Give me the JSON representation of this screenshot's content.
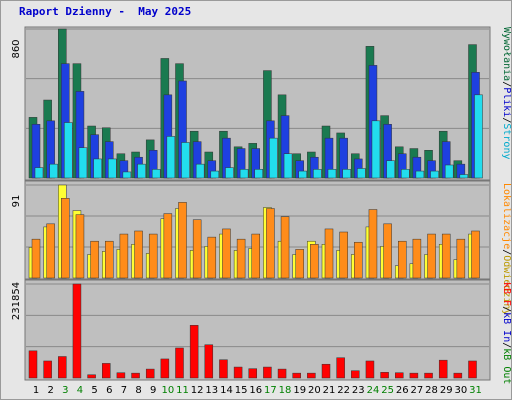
{
  "title": "Raport Dzienny -  May 2025",
  "colors": {
    "bg": "#e6e6e6",
    "plot_bg": "#bfbfbf",
    "grid": "#8a8a8a",
    "title": "#0000cc",
    "day_normal": "#000000",
    "day_weekend": "#008000"
  },
  "legend": {
    "right_top": [
      {
        "text": "Wywołania",
        "color": "#006633"
      },
      {
        "text": "/",
        "color": "#000000"
      },
      {
        "text": "Pliki",
        "color": "#0000cc"
      },
      {
        "text": "/",
        "color": "#000000"
      },
      {
        "text": "Strony",
        "color": "#00aacc"
      }
    ],
    "right_middle": [
      {
        "text": "Lokalizacje",
        "color": "#ff8800"
      },
      {
        "text": "/",
        "color": "#000000"
      },
      {
        "text": "Odwiedziny",
        "color": "#bb9900"
      }
    ],
    "right_bottom": [
      {
        "text": "kB F",
        "color": "#ff0000"
      },
      {
        "text": "/",
        "color": "#000000"
      },
      {
        "text": "kB In",
        "color": "#0000cc"
      },
      {
        "text": "/",
        "color": "#000000"
      },
      {
        "text": "kB Out",
        "color": "#008000"
      }
    ]
  },
  "chart_data": [
    {
      "type": "bar",
      "panel": "top",
      "ymax_label": "860",
      "ylim": [
        0,
        860
      ],
      "categories": [
        "1",
        "2",
        "3",
        "4",
        "5",
        "6",
        "7",
        "8",
        "9",
        "10",
        "11",
        "12",
        "13",
        "14",
        "15",
        "16",
        "17",
        "18",
        "19",
        "20",
        "21",
        "22",
        "23",
        "24",
        "25",
        "26",
        "27",
        "28",
        "29",
        "30",
        "31"
      ],
      "weekend_days": [
        "3",
        "4",
        "10",
        "11",
        "17",
        "18",
        "24",
        "25",
        "31"
      ],
      "series": [
        {
          "color": "#1a7a50",
          "values": [
            350,
            450,
            860,
            660,
            300,
            290,
            140,
            150,
            220,
            690,
            660,
            270,
            150,
            270,
            180,
            200,
            620,
            480,
            140,
            150,
            300,
            260,
            140,
            760,
            360,
            180,
            170,
            160,
            270,
            100,
            770
          ]
        },
        {
          "color": "#1e40e0",
          "values": [
            310,
            330,
            660,
            500,
            250,
            210,
            100,
            120,
            160,
            480,
            560,
            210,
            100,
            230,
            170,
            170,
            330,
            360,
            100,
            120,
            230,
            230,
            110,
            650,
            310,
            140,
            120,
            100,
            210,
            80,
            610
          ]
        },
        {
          "color": "#22ddee",
          "values": [
            60,
            80,
            320,
            175,
            110,
            110,
            35,
            80,
            50,
            240,
            205,
            80,
            40,
            60,
            50,
            50,
            230,
            140,
            40,
            50,
            50,
            50,
            55,
            330,
            100,
            50,
            40,
            40,
            75,
            20,
            480
          ]
        }
      ]
    },
    {
      "type": "bar",
      "panel": "middle",
      "ymax_label": "91",
      "ylim": [
        0,
        91
      ],
      "categories": [
        "1",
        "2",
        "3",
        "4",
        "5",
        "6",
        "7",
        "8",
        "9",
        "10",
        "11",
        "12",
        "13",
        "14",
        "15",
        "16",
        "17",
        "18",
        "19",
        "20",
        "21",
        "22",
        "23",
        "24",
        "25",
        "26",
        "27",
        "28",
        "29",
        "30",
        "31"
      ],
      "series": [
        {
          "color": "#ffff33",
          "values": [
            30,
            50,
            91,
            66,
            23,
            26,
            28,
            33,
            24,
            58,
            68,
            27,
            31,
            43,
            27,
            29,
            69,
            36,
            23,
            36,
            33,
            27,
            23,
            50,
            31,
            12,
            14,
            23,
            33,
            18,
            43
          ]
        },
        {
          "color": "#ff8c1a",
          "values": [
            38,
            53,
            78,
            62,
            36,
            36,
            43,
            46,
            43,
            63,
            74,
            57,
            40,
            48,
            38,
            43,
            68,
            60,
            28,
            33,
            48,
            45,
            35,
            67,
            53,
            36,
            38,
            43,
            43,
            38,
            46
          ]
        }
      ]
    },
    {
      "type": "bar",
      "panel": "bottom",
      "ymax_label": "231854",
      "ylim": [
        0,
        231854
      ],
      "categories": [
        "1",
        "2",
        "3",
        "4",
        "5",
        "6",
        "7",
        "8",
        "9",
        "10",
        "11",
        "12",
        "13",
        "14",
        "15",
        "16",
        "17",
        "18",
        "19",
        "20",
        "21",
        "22",
        "23",
        "24",
        "25",
        "26",
        "27",
        "28",
        "29",
        "30",
        "31"
      ],
      "series": [
        {
          "color": "#ff0000",
          "values": [
            67000,
            42000,
            53000,
            231854,
            8000,
            36000,
            13000,
            12000,
            22000,
            47000,
            74000,
            130000,
            82000,
            45000,
            27000,
            23000,
            27000,
            22000,
            12000,
            12000,
            34000,
            50000,
            18000,
            42000,
            14000,
            13000,
            12000,
            12000,
            44000,
            12000,
            42000
          ]
        }
      ]
    }
  ]
}
